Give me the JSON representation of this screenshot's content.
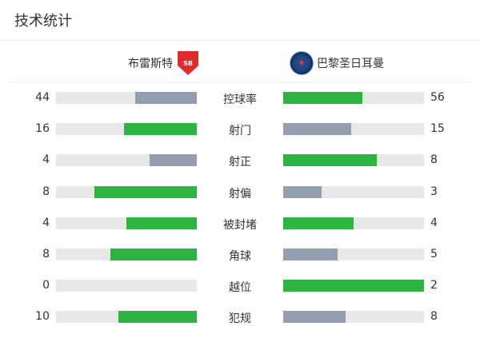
{
  "title": "技术统计",
  "colors": {
    "win": "#2db442",
    "lose": "#939eb1",
    "track": "#e8e8e8"
  },
  "teams": {
    "home": {
      "name": "布雷斯特",
      "crest_icon": "brest-crest-icon",
      "crest_text": "SB"
    },
    "away": {
      "name": "巴黎圣日耳曼",
      "crest_icon": "psg-crest-icon",
      "crest_text": "PSG"
    }
  },
  "stats": [
    {
      "label": "控球率",
      "home": 44,
      "away": 56
    },
    {
      "label": "射门",
      "home": 16,
      "away": 15
    },
    {
      "label": "射正",
      "home": 4,
      "away": 8
    },
    {
      "label": "射偏",
      "home": 8,
      "away": 3
    },
    {
      "label": "被封堵",
      "home": 4,
      "away": 4
    },
    {
      "label": "角球",
      "home": 8,
      "away": 5
    },
    {
      "label": "越位",
      "home": 0,
      "away": 2
    },
    {
      "label": "犯规",
      "home": 10,
      "away": 8
    }
  ]
}
